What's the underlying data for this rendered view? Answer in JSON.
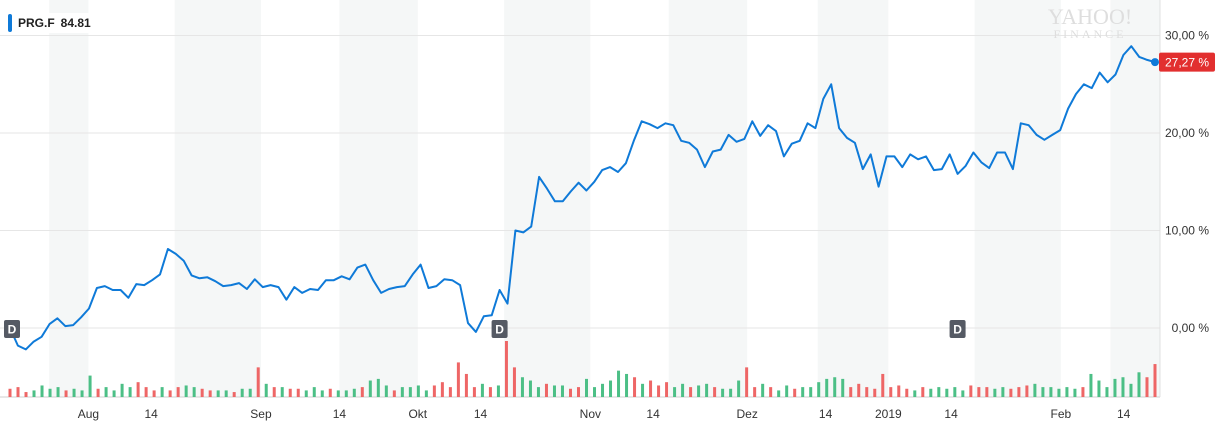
{
  "legend": {
    "ticker": "PRG.F",
    "price": "84.81",
    "color": "#0f7ad8"
  },
  "watermark": {
    "line1": "YAHOO!",
    "line2": "FINANCE"
  },
  "last_value_label": "27,27 %",
  "dividend_marker_label": "D",
  "chart_data": {
    "type": "line",
    "ylim": [
      -7,
      32
    ],
    "y_ticks": [
      {
        "value": 0,
        "label": "0,00 %"
      },
      {
        "value": 10,
        "label": "10,00 %"
      },
      {
        "value": 20,
        "label": "20,00 %"
      },
      {
        "value": 30,
        "label": "30,00 %"
      }
    ],
    "x_ticks": [
      {
        "index": 5,
        "label": "Aug"
      },
      {
        "index": 9,
        "label": "14"
      },
      {
        "index": 16,
        "label": "Sep"
      },
      {
        "index": 21,
        "label": "14"
      },
      {
        "index": 26,
        "label": "Okt"
      },
      {
        "index": 30,
        "label": "14"
      },
      {
        "index": 37,
        "label": "Nov"
      },
      {
        "index": 41,
        "label": "14"
      },
      {
        "index": 47,
        "label": "Dez"
      },
      {
        "index": 52,
        "label": "14"
      },
      {
        "index": 56,
        "label": "2019"
      },
      {
        "index": 60,
        "label": "14"
      },
      {
        "index": 67,
        "label": "Feb"
      },
      {
        "index": 71,
        "label": "14"
      }
    ],
    "series": [
      {
        "values": [
          0,
          -1.8,
          -2.2,
          -1.4,
          -0.9,
          0.4,
          1.0,
          0.2,
          0.3,
          1.1,
          2.0,
          4.1,
          4.3,
          3.9,
          3.9,
          3.1,
          4.5,
          4.4,
          4.9,
          5.5,
          8.1,
          7.6,
          6.9,
          5.4,
          5.1,
          5.2,
          4.8,
          4.3,
          4.4,
          4.6,
          4.0,
          5.0,
          4.2,
          4.4,
          4.2,
          2.9,
          4.2,
          3.6,
          4.0,
          3.9,
          4.9,
          4.9,
          5.3,
          5.0,
          6.2,
          6.5,
          4.9,
          3.6,
          4.0,
          4.2,
          4.3,
          5.5,
          6.5,
          4.1,
          4.3,
          5.0,
          4.9,
          4.4,
          0.5,
          -0.4,
          1.2,
          1.3,
          3.9,
          2.5,
          10.0,
          9.8,
          10.4,
          15.5,
          14.3,
          13.0,
          13.0,
          14.0,
          14.9,
          14.1,
          15.0,
          16.2,
          16.5,
          16.0,
          16.9,
          19.2,
          21.2,
          20.9,
          20.5,
          21.0,
          20.8,
          19.2,
          19.0,
          18.3,
          16.5,
          18.1,
          18.3,
          19.8,
          19.1,
          19.4,
          21.2,
          19.7,
          20.8,
          20.2,
          17.6,
          18.9,
          19.2,
          21.0,
          20.5,
          23.5,
          25.0,
          20.5,
          19.5,
          19.0,
          16.3,
          17.8,
          14.5,
          17.6,
          17.6,
          16.5,
          17.8,
          17.3,
          17.6,
          16.2,
          16.3,
          17.8,
          15.8,
          16.6,
          18.0,
          17.0,
          16.4,
          18.0,
          18.0,
          16.3,
          21.0,
          20.8,
          19.8,
          19.3,
          19.8,
          20.3,
          22.5,
          24.0,
          25.0,
          24.6,
          26.2,
          25.2,
          26.0,
          28.0,
          28.9,
          27.8,
          27.5,
          27.27
        ]
      }
    ],
    "volume": {
      "bars": [
        {
          "value": 0.25,
          "color": "red"
        },
        {
          "value": 0.3,
          "color": "red"
        },
        {
          "value": 0.15,
          "color": "red"
        },
        {
          "value": 0.2,
          "color": "green"
        },
        {
          "value": 0.35,
          "color": "green"
        },
        {
          "value": 0.25,
          "color": "green"
        },
        {
          "value": 0.3,
          "color": "green"
        },
        {
          "value": 0.2,
          "color": "red"
        },
        {
          "value": 0.25,
          "color": "green"
        },
        {
          "value": 0.2,
          "color": "green"
        },
        {
          "value": 0.65,
          "color": "green"
        },
        {
          "value": 0.25,
          "color": "red"
        },
        {
          "value": 0.3,
          "color": "green"
        },
        {
          "value": 0.2,
          "color": "green"
        },
        {
          "value": 0.4,
          "color": "green"
        },
        {
          "value": 0.3,
          "color": "green"
        },
        {
          "value": 0.45,
          "color": "red"
        },
        {
          "value": 0.3,
          "color": "red"
        },
        {
          "value": 0.2,
          "color": "red"
        },
        {
          "value": 0.3,
          "color": "green"
        },
        {
          "value": 0.2,
          "color": "red"
        },
        {
          "value": 0.3,
          "color": "red"
        },
        {
          "value": 0.35,
          "color": "green"
        },
        {
          "value": 0.3,
          "color": "green"
        },
        {
          "value": 0.25,
          "color": "red"
        },
        {
          "value": 0.2,
          "color": "red"
        },
        {
          "value": 0.2,
          "color": "green"
        },
        {
          "value": 0.2,
          "color": "green"
        },
        {
          "value": 0.15,
          "color": "red"
        },
        {
          "value": 0.25,
          "color": "green"
        },
        {
          "value": 0.25,
          "color": "green"
        },
        {
          "value": 0.9,
          "color": "red"
        },
        {
          "value": 0.4,
          "color": "green"
        },
        {
          "value": 0.3,
          "color": "red"
        },
        {
          "value": 0.3,
          "color": "green"
        },
        {
          "value": 0.25,
          "color": "red"
        },
        {
          "value": 0.25,
          "color": "red"
        },
        {
          "value": 0.2,
          "color": "green"
        },
        {
          "value": 0.3,
          "color": "green"
        },
        {
          "value": 0.2,
          "color": "green"
        },
        {
          "value": 0.25,
          "color": "red"
        },
        {
          "value": 0.2,
          "color": "green"
        },
        {
          "value": 0.2,
          "color": "green"
        },
        {
          "value": 0.25,
          "color": "green"
        },
        {
          "value": 0.3,
          "color": "red"
        },
        {
          "value": 0.5,
          "color": "green"
        },
        {
          "value": 0.55,
          "color": "green"
        },
        {
          "value": 0.35,
          "color": "green"
        },
        {
          "value": 0.2,
          "color": "red"
        },
        {
          "value": 0.3,
          "color": "green"
        },
        {
          "value": 0.3,
          "color": "green"
        },
        {
          "value": 0.35,
          "color": "green"
        },
        {
          "value": 0.2,
          "color": "green"
        },
        {
          "value": 0.35,
          "color": "red"
        },
        {
          "value": 0.45,
          "color": "red"
        },
        {
          "value": 0.3,
          "color": "red"
        },
        {
          "value": 1.05,
          "color": "red"
        },
        {
          "value": 0.7,
          "color": "red"
        },
        {
          "value": 0.3,
          "color": "red"
        },
        {
          "value": 0.4,
          "color": "green"
        },
        {
          "value": 0.3,
          "color": "red"
        },
        {
          "value": 0.35,
          "color": "green"
        },
        {
          "value": 1.7,
          "color": "red"
        },
        {
          "value": 0.9,
          "color": "red"
        },
        {
          "value": 0.6,
          "color": "green"
        },
        {
          "value": 0.5,
          "color": "green"
        },
        {
          "value": 0.3,
          "color": "green"
        },
        {
          "value": 0.4,
          "color": "red"
        },
        {
          "value": 0.35,
          "color": "green"
        },
        {
          "value": 0.35,
          "color": "green"
        },
        {
          "value": 0.25,
          "color": "red"
        },
        {
          "value": 0.3,
          "color": "red"
        },
        {
          "value": 0.55,
          "color": "green"
        },
        {
          "value": 0.3,
          "color": "green"
        },
        {
          "value": 0.4,
          "color": "green"
        },
        {
          "value": 0.5,
          "color": "green"
        },
        {
          "value": 0.8,
          "color": "green"
        },
        {
          "value": 0.7,
          "color": "green"
        },
        {
          "value": 0.6,
          "color": "red"
        },
        {
          "value": 0.4,
          "color": "green"
        },
        {
          "value": 0.5,
          "color": "red"
        },
        {
          "value": 0.35,
          "color": "red"
        },
        {
          "value": 0.45,
          "color": "red"
        },
        {
          "value": 0.3,
          "color": "green"
        },
        {
          "value": 0.4,
          "color": "green"
        },
        {
          "value": 0.3,
          "color": "red"
        },
        {
          "value": 0.35,
          "color": "green"
        },
        {
          "value": 0.4,
          "color": "green"
        },
        {
          "value": 0.3,
          "color": "red"
        },
        {
          "value": 0.25,
          "color": "green"
        },
        {
          "value": 0.25,
          "color": "green"
        },
        {
          "value": 0.5,
          "color": "green"
        },
        {
          "value": 0.9,
          "color": "red"
        },
        {
          "value": 0.3,
          "color": "red"
        },
        {
          "value": 0.4,
          "color": "green"
        },
        {
          "value": 0.3,
          "color": "red"
        },
        {
          "value": 0.2,
          "color": "green"
        },
        {
          "value": 0.35,
          "color": "green"
        },
        {
          "value": 0.25,
          "color": "red"
        },
        {
          "value": 0.3,
          "color": "green"
        },
        {
          "value": 0.3,
          "color": "green"
        },
        {
          "value": 0.45,
          "color": "green"
        },
        {
          "value": 0.55,
          "color": "green"
        },
        {
          "value": 0.6,
          "color": "green"
        },
        {
          "value": 0.55,
          "color": "green"
        },
        {
          "value": 0.3,
          "color": "red"
        },
        {
          "value": 0.4,
          "color": "red"
        },
        {
          "value": 0.3,
          "color": "red"
        },
        {
          "value": 0.25,
          "color": "red"
        },
        {
          "value": 0.7,
          "color": "red"
        },
        {
          "value": 0.3,
          "color": "red"
        },
        {
          "value": 0.35,
          "color": "red"
        },
        {
          "value": 0.25,
          "color": "red"
        },
        {
          "value": 0.2,
          "color": "green"
        },
        {
          "value": 0.3,
          "color": "red"
        },
        {
          "value": 0.25,
          "color": "green"
        },
        {
          "value": 0.3,
          "color": "green"
        },
        {
          "value": 0.25,
          "color": "green"
        },
        {
          "value": 0.3,
          "color": "green"
        },
        {
          "value": 0.2,
          "color": "green"
        },
        {
          "value": 0.35,
          "color": "red"
        },
        {
          "value": 0.3,
          "color": "red"
        },
        {
          "value": 0.3,
          "color": "red"
        },
        {
          "value": 0.25,
          "color": "green"
        },
        {
          "value": 0.3,
          "color": "green"
        },
        {
          "value": 0.25,
          "color": "red"
        },
        {
          "value": 0.3,
          "color": "red"
        },
        {
          "value": 0.35,
          "color": "red"
        },
        {
          "value": 0.4,
          "color": "green"
        },
        {
          "value": 0.3,
          "color": "green"
        },
        {
          "value": 0.3,
          "color": "green"
        },
        {
          "value": 0.25,
          "color": "green"
        },
        {
          "value": 0.3,
          "color": "green"
        },
        {
          "value": 0.25,
          "color": "green"
        },
        {
          "value": 0.3,
          "color": "red"
        },
        {
          "value": 0.7,
          "color": "green"
        },
        {
          "value": 0.5,
          "color": "green"
        },
        {
          "value": 0.3,
          "color": "green"
        },
        {
          "value": 0.55,
          "color": "green"
        },
        {
          "value": 0.6,
          "color": "green"
        },
        {
          "value": 0.4,
          "color": "green"
        },
        {
          "value": 0.75,
          "color": "green"
        },
        {
          "value": 0.6,
          "color": "red"
        },
        {
          "value": 1.0,
          "color": "red"
        }
      ]
    },
    "dividend_markers": [
      0,
      62,
      120
    ],
    "colors": {
      "line": "#0f7ad8",
      "vol_green": "#4cbf86",
      "vol_red": "#ee6666",
      "last_badge": "#e22f2f",
      "marker": "#555a64"
    }
  }
}
